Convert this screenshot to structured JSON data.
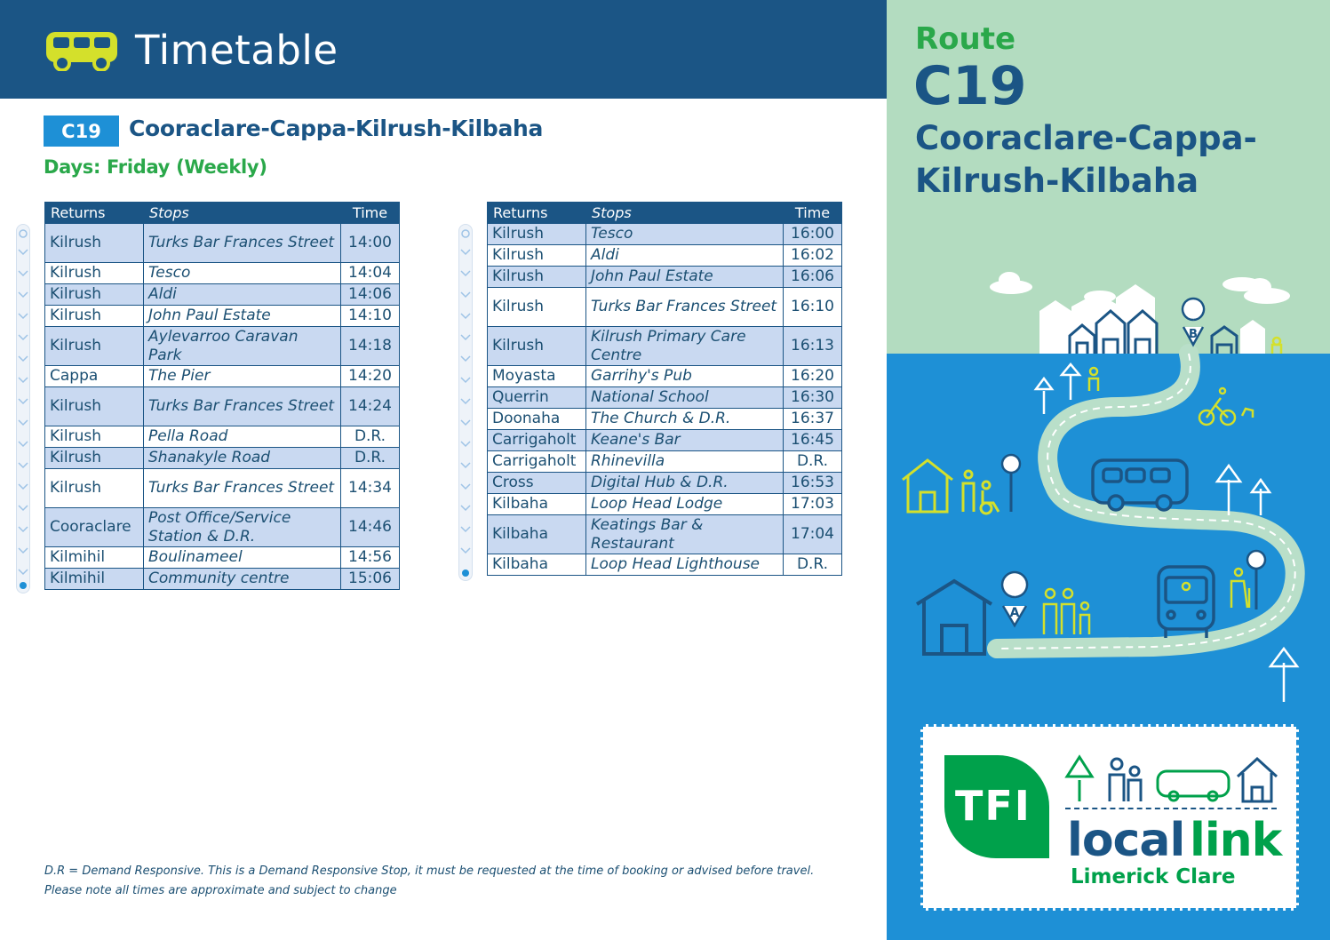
{
  "header": {
    "title": "Timetable",
    "icon": "bus-icon"
  },
  "route": {
    "code": "C19",
    "name": "Cooraclare-Cappa-Kilrush-Kilbaha",
    "days": "Days: Friday (Weekly)"
  },
  "table1": {
    "headers": [
      "Returns",
      "Stops",
      "Time"
    ],
    "rows": [
      {
        "town": "Kilrush",
        "stop": "Turks Bar Frances Street",
        "time": "14:00"
      },
      {
        "town": "Kilrush",
        "stop": "Tesco",
        "time": "14:04"
      },
      {
        "town": "Kilrush",
        "stop": "Aldi",
        "time": "14:06"
      },
      {
        "town": "Kilrush",
        "stop": "John Paul Estate",
        "time": "14:10"
      },
      {
        "town": "Kilrush",
        "stop": "Aylevarroo Caravan Park",
        "time": "14:18"
      },
      {
        "town": "Cappa",
        "stop": "The Pier",
        "time": "14:20"
      },
      {
        "town": "Kilrush",
        "stop": "Turks Bar Frances Street",
        "time": "14:24"
      },
      {
        "town": "Kilrush",
        "stop": "Pella Road",
        "time": "D.R."
      },
      {
        "town": "Kilrush",
        "stop": "Shanakyle Road",
        "time": "D.R."
      },
      {
        "town": "Kilrush",
        "stop": "Turks Bar Frances Street",
        "time": "14:34"
      },
      {
        "town": "Cooraclare",
        "stop": "Post Office/Service Station & D.R.",
        "time": "14:46"
      },
      {
        "town": "Kilmihil",
        "stop": "Boulinameel",
        "time": "14:56"
      },
      {
        "town": "Kilmihil",
        "stop": "Community centre",
        "time": "15:06"
      }
    ]
  },
  "table2": {
    "headers": [
      "Returns",
      "Stops",
      "Time"
    ],
    "rows": [
      {
        "town": "Kilrush",
        "stop": "Tesco",
        "time": "16:00"
      },
      {
        "town": "Kilrush",
        "stop": "Aldi",
        "time": "16:02"
      },
      {
        "town": "Kilrush",
        "stop": "John Paul Estate",
        "time": "16:06"
      },
      {
        "town": "Kilrush",
        "stop": "Turks Bar Frances Street",
        "time": "16:10"
      },
      {
        "town": "Kilrush",
        "stop": "Kilrush Primary Care Centre",
        "time": "16:13"
      },
      {
        "town": "Moyasta",
        "stop": "Garrihy's Pub",
        "time": "16:20"
      },
      {
        "town": "Querrin",
        "stop": "National School",
        "time": "16:30"
      },
      {
        "town": "Doonaha",
        "stop": "The Church & D.R.",
        "time": "16:37"
      },
      {
        "town": "Carrigaholt",
        "stop": "Keane's Bar",
        "time": "16:45"
      },
      {
        "town": "Carrigaholt",
        "stop": "Rhinevilla",
        "time": "D.R."
      },
      {
        "town": "Cross",
        "stop": "Digital Hub & D.R.",
        "time": "16:53"
      },
      {
        "town": "Kilbaha",
        "stop": "Loop Head Lodge",
        "time": "17:03"
      },
      {
        "town": "Kilbaha",
        "stop": "Keatings Bar & Restaurant",
        "time": "17:04"
      },
      {
        "town": "Kilbaha",
        "stop": "Loop Head Lighthouse",
        "time": "D.R."
      }
    ]
  },
  "notes": {
    "line1": "D.R = Demand Responsive. This is a Demand Responsive Stop, it must be requested at the time of booking or advised before travel.",
    "line2": "Please note all times are approximate and subject to change"
  },
  "panel": {
    "route_label": "Route",
    "route_code": "C19",
    "route_name": "Cooraclare-Cappa-Kilrush-Kilbaha",
    "map_marker_a": "A",
    "map_marker_b": "B"
  },
  "logo": {
    "tfi": "TFI",
    "local": "local",
    "link": "link",
    "region": "Limerick Clare"
  },
  "colors": {
    "navy": "#1b5585",
    "blue": "#1e90d6",
    "green": "#2aa84a",
    "mint": "#b3dcc0",
    "row_alt": "#c9d9f1",
    "lime": "#d4e02b"
  }
}
